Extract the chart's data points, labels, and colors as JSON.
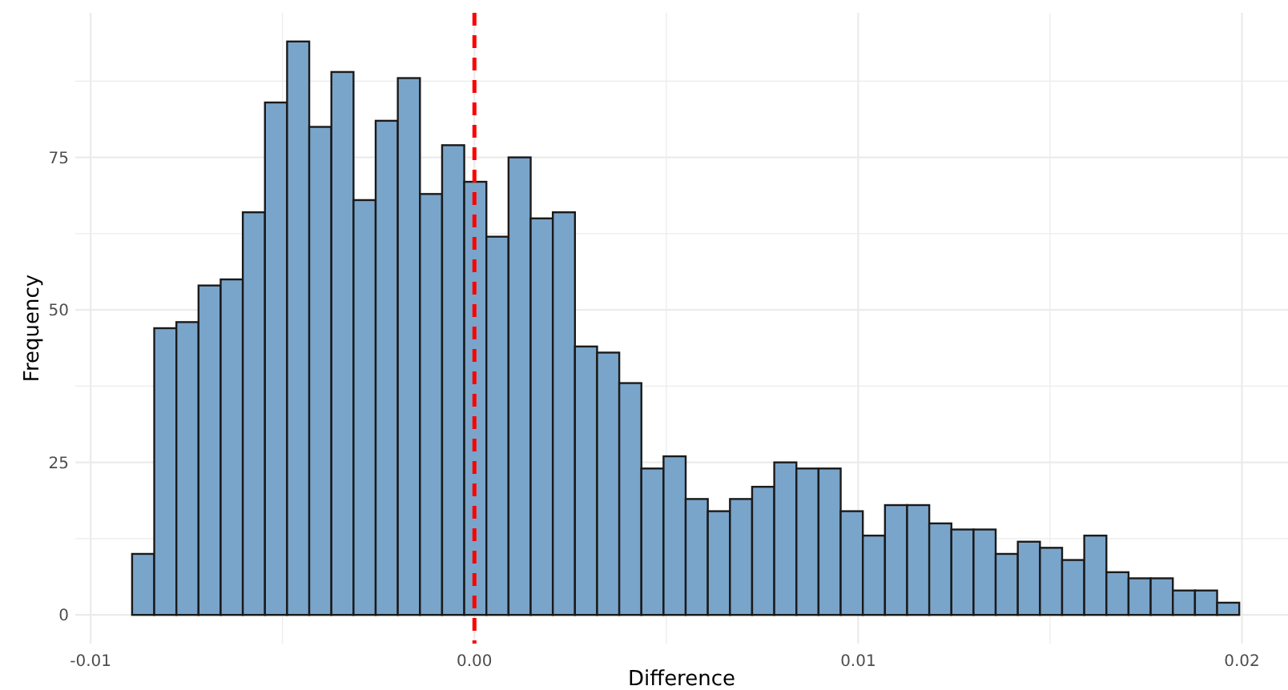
{
  "chart_data": {
    "type": "histogram",
    "xlabel": "Difference",
    "ylabel": "Frequency",
    "bins": [
      -0.00892,
      -0.008343,
      -0.007766,
      -0.007189,
      -0.006612,
      -0.006035,
      -0.005458,
      -0.004881,
      -0.004304,
      -0.003727,
      -0.00315,
      -0.002573,
      -0.001996,
      -0.001419,
      -0.000842,
      -0.000265,
      0.000312,
      0.000889,
      0.001466,
      0.002043,
      0.00262,
      0.003197,
      0.003774,
      0.004351,
      0.004928,
      0.005505,
      0.006082,
      0.006659,
      0.007236,
      0.007813,
      0.00839,
      0.008967,
      0.009544,
      0.010121,
      0.010698,
      0.011275,
      0.011852,
      0.012429,
      0.013006,
      0.013583,
      0.01416,
      0.014737,
      0.015314,
      0.015891,
      0.016468,
      0.017045,
      0.017622,
      0.018199,
      0.018776,
      0.019353,
      0.01993
    ],
    "values": [
      10,
      47,
      48,
      54,
      55,
      66,
      84,
      94,
      80,
      89,
      68,
      81,
      88,
      69,
      77,
      71,
      62,
      75,
      65,
      66,
      44,
      43,
      38,
      24,
      26,
      19,
      17,
      19,
      21,
      25,
      24,
      24,
      17,
      13,
      18,
      18,
      15,
      14,
      14,
      10,
      12,
      11,
      9,
      13,
      7,
      6,
      6,
      4,
      4,
      2
    ],
    "color": "#7aa5cb",
    "xlim": [
      -0.0104,
      0.0212
    ],
    "ylim": [
      -4.7,
      98.7
    ],
    "xticks": [
      {
        "value": -0.01,
        "label": "-0.01"
      },
      {
        "value": -0.005,
        "label": null
      },
      {
        "value": 0,
        "label": "0.00"
      },
      {
        "value": 0.005,
        "label": null
      },
      {
        "value": 0.01,
        "label": "0.01"
      },
      {
        "value": 0.015,
        "label": null
      },
      {
        "value": 0.02,
        "label": "0.02"
      }
    ],
    "yticks": [
      0,
      {
        "value": 12.5,
        "label": null
      },
      25,
      {
        "value": 37.5,
        "label": null
      },
      50,
      {
        "value": 62.5,
        "label": null
      },
      75,
      {
        "value": 87.5,
        "label": null
      }
    ],
    "grid": true,
    "ref_lines": [
      {
        "axis": "x",
        "value": 0,
        "color": "#ff0000",
        "line_style": "dashed"
      }
    ]
  }
}
